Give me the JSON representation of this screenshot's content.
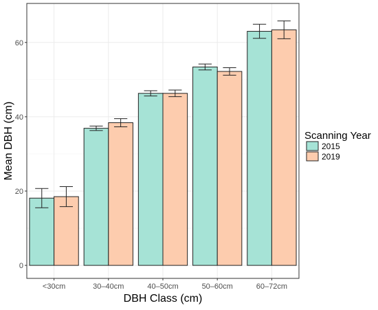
{
  "chart_data": {
    "type": "bar",
    "xlabel": "DBH Class (cm)",
    "ylabel": "Mean DBH (cm)",
    "categories": [
      "<30cm",
      "30–40cm",
      "40–50cm",
      "50–60cm",
      "60–72cm"
    ],
    "ylim": [
      -3.5,
      70.5
    ],
    "yticks": [
      0,
      20,
      40,
      60
    ],
    "grid": true,
    "legend": {
      "title": "Scanning Year",
      "position": "right"
    },
    "series": [
      {
        "name": "2015",
        "color": "#a6e3d6",
        "values": [
          18.1,
          36.9,
          46.3,
          53.4,
          63.0
        ],
        "error": [
          2.6,
          0.6,
          0.7,
          0.8,
          1.9
        ]
      },
      {
        "name": "2019",
        "color": "#fdccae",
        "values": [
          18.5,
          38.4,
          46.3,
          52.2,
          63.4
        ],
        "error": [
          2.7,
          1.1,
          0.9,
          1.0,
          2.4
        ]
      }
    ]
  }
}
